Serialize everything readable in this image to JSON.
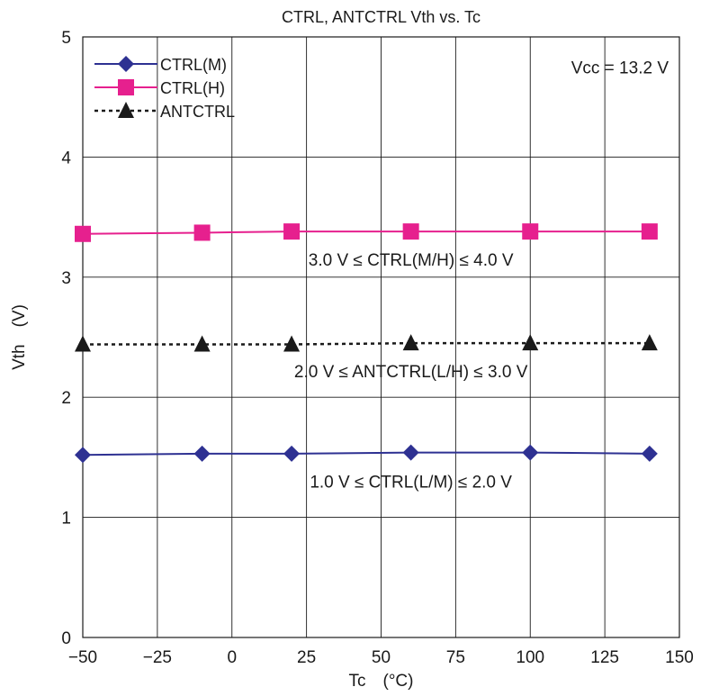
{
  "chart_data": {
    "type": "line",
    "title": "CTRL, ANTCTRL Vth vs. Tc",
    "xlabel": "Tc (°C)",
    "ylabel": "Vth (V)",
    "xlim": [
      -50,
      150
    ],
    "ylim": [
      0,
      5
    ],
    "xticks": [
      -50,
      -25,
      0,
      25,
      50,
      75,
      100,
      125,
      150
    ],
    "xtick_labels": [
      "−50",
      "−25",
      "0",
      "25",
      "50",
      "75",
      "100",
      "125",
      "150"
    ],
    "yticks": [
      0,
      1,
      2,
      3,
      4,
      5
    ],
    "ytick_labels": [
      "0",
      "1",
      "2",
      "3",
      "4",
      "5"
    ],
    "grid": true,
    "legend_position": "top-left",
    "x": [
      -50,
      -10,
      20,
      60,
      100,
      140
    ],
    "series": [
      {
        "name": "CTRL(M)",
        "values": [
          1.52,
          1.53,
          1.53,
          1.54,
          1.54,
          1.53
        ],
        "color": "#2e3192",
        "marker": "diamond",
        "line": "solid"
      },
      {
        "name": "CTRL(H)",
        "values": [
          3.36,
          3.37,
          3.38,
          3.38,
          3.38,
          3.38
        ],
        "color": "#e6208e",
        "marker": "square",
        "line": "solid"
      },
      {
        "name": "ANTCTRL",
        "values": [
          2.44,
          2.44,
          2.44,
          2.45,
          2.45,
          2.45
        ],
        "color": "#1a1a1a",
        "marker": "triangle",
        "line": "dotted"
      }
    ],
    "annotations": [
      {
        "text": "Vcc = 13.2 V",
        "x": 122,
        "y": 4.75
      },
      {
        "text": "3.0 V ≤ CTRL(M/H) ≤ 4.0 V",
        "x": 60,
        "y": 3.15
      },
      {
        "text": "2.0 V ≤ ANTCTRL(L/H) ≤ 3.0 V",
        "x": 60,
        "y": 2.22
      },
      {
        "text": "1.0 V ≤ CTRL(L/M) ≤ 2.0 V",
        "x": 60,
        "y": 1.3
      }
    ]
  }
}
